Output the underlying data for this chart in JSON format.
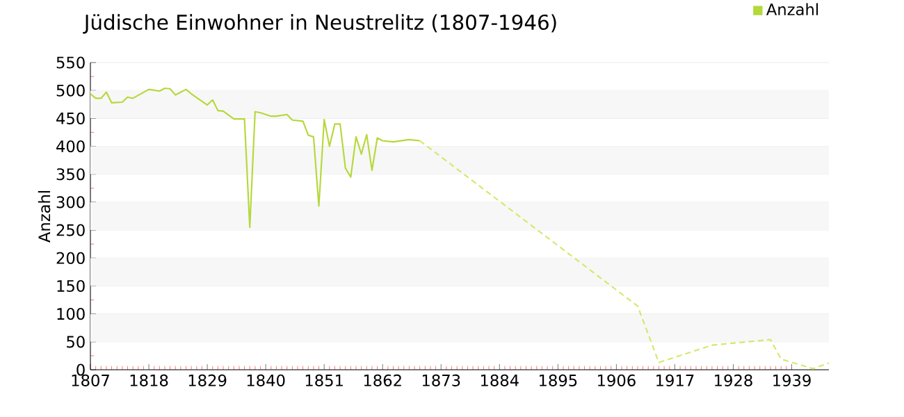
{
  "chart_data": {
    "type": "line",
    "title": "Jüdische Einwohner in Neustrelitz (1807-1946)",
    "ylabel": "Anzahl",
    "xlim": [
      1807,
      1946
    ],
    "xticks": [
      1807,
      1818,
      1829,
      1840,
      1851,
      1862,
      1873,
      1884,
      1895,
      1906,
      1917,
      1928,
      1939
    ],
    "ylim": [
      0,
      550
    ],
    "yticks": [
      0,
      50,
      100,
      150,
      200,
      250,
      300,
      350,
      400,
      450,
      500,
      550
    ],
    "grid": "y",
    "legend": "top right",
    "marker": "none",
    "series": [
      {
        "name": "Anzahl",
        "color": "#b5d83a",
        "line_style": "solid",
        "x": [
          1807,
          1808,
          1809,
          1810,
          1811,
          1813,
          1814,
          1815,
          1818,
          1820,
          1821,
          1822,
          1823,
          1825,
          1826,
          1829,
          1830,
          1831,
          1832,
          1834,
          1836,
          1837,
          1838,
          1839,
          1841,
          1842,
          1844,
          1845,
          1847,
          1848,
          1849,
          1850,
          1851,
          1852,
          1853,
          1854,
          1855,
          1856,
          1857,
          1858,
          1859,
          1860,
          1861,
          1862,
          1864,
          1867,
          1869
        ],
        "values": [
          494,
          486,
          486,
          497,
          478,
          479,
          488,
          486,
          502,
          499,
          504,
          503,
          492,
          502,
          494,
          474,
          483,
          464,
          463,
          449,
          449,
          255,
          462,
          460,
          454,
          454,
          457,
          447,
          445,
          420,
          417,
          293,
          448,
          400,
          440,
          440,
          361,
          345,
          417,
          386,
          421,
          357,
          415,
          410,
          408,
          412,
          410
        ]
      },
      {
        "color": "#d4e86a",
        "line_style": "dashed",
        "x": [
          1869,
          1910,
          1914,
          1924,
          1935,
          1937,
          1943,
          1946
        ],
        "values": [
          410,
          114,
          13,
          44,
          54,
          19,
          2,
          12
        ]
      }
    ]
  }
}
